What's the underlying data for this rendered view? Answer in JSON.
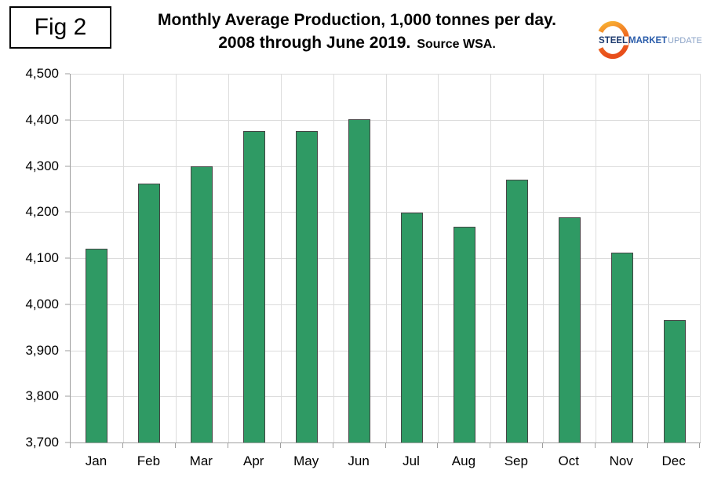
{
  "figure": {
    "label": "Fig 2"
  },
  "title": {
    "line1": "Monthly Average Production, 1,000 tonnes per day.",
    "line2": "2008 through June 2019.",
    "source": "Source WSA."
  },
  "logo": {
    "steel": "STEEL",
    "market": "MARKET",
    "update": "UPDATE",
    "steel_color": "#1c3a6e",
    "market_color": "#2a5caa",
    "update_color": "#8ba3c7",
    "swoosh_top_color": "#f9b233",
    "swoosh_bottom_color": "#e84e1b"
  },
  "chart_data": {
    "type": "bar",
    "title": "Monthly Average Production, 1,000 tonnes per day. 2008 through June 2019. Source WSA.",
    "categories": [
      "Jan",
      "Feb",
      "Mar",
      "Apr",
      "May",
      "Jun",
      "Jul",
      "Aug",
      "Sep",
      "Oct",
      "Nov",
      "Dec"
    ],
    "values": [
      4120,
      4262,
      4300,
      4375,
      4375,
      4402,
      4198,
      4168,
      4270,
      4188,
      4112,
      3965
    ],
    "xlabel": "",
    "ylabel": "",
    "ylim": [
      3700,
      4500
    ],
    "grid": true,
    "legend": false,
    "bar_color": "#2f9a64",
    "bar_border_color": "#454545",
    "gridline_color": "#dcdcdc",
    "axis_color": "#9e9e9e",
    "yticks": [
      {
        "value": 3700,
        "label": "3,700"
      },
      {
        "value": 3800,
        "label": "3,800"
      },
      {
        "value": 3900,
        "label": "3,900"
      },
      {
        "value": 4000,
        "label": "4,000"
      },
      {
        "value": 4100,
        "label": "4,100"
      },
      {
        "value": 4200,
        "label": "4,200"
      },
      {
        "value": 4300,
        "label": "4,300"
      },
      {
        "value": 4400,
        "label": "4,400"
      },
      {
        "value": 4500,
        "label": "4,500"
      }
    ]
  }
}
